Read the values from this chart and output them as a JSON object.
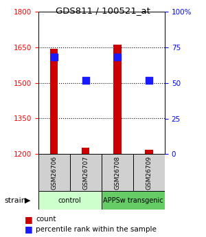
{
  "title": "GDS811 / 100521_at",
  "samples": [
    "GSM26706",
    "GSM26707",
    "GSM26708",
    "GSM26709"
  ],
  "count_values": [
    1645,
    1228,
    1663,
    1218
  ],
  "percentile_values": [
    68,
    52,
    68,
    52
  ],
  "ylim_left": [
    1200,
    1800
  ],
  "ylim_right": [
    0,
    100
  ],
  "yticks_left": [
    1200,
    1350,
    1500,
    1650,
    1800
  ],
  "yticks_right": [
    0,
    25,
    50,
    75,
    100
  ],
  "ytick_labels_right": [
    "0",
    "25",
    "50",
    "75",
    "100%"
  ],
  "hlines": [
    1350,
    1500,
    1650
  ],
  "bar_color": "#cc0000",
  "dot_color": "#1a1aff",
  "groups": [
    {
      "label": "control",
      "samples": [
        0,
        1
      ],
      "color": "#ccffcc"
    },
    {
      "label": "APPSw transgenic",
      "samples": [
        2,
        3
      ],
      "color": "#66cc66"
    }
  ],
  "strain_label": "strain",
  "bar_width": 0.25,
  "dot_size": 45,
  "sample_box_color": "#d0d0d0"
}
